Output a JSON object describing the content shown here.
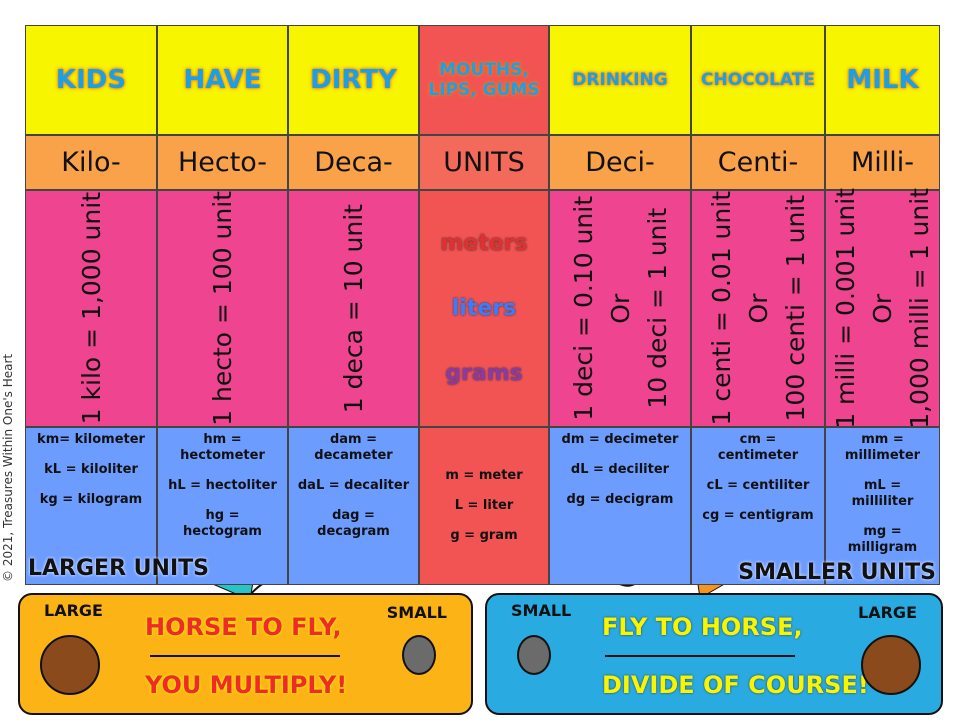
{
  "copyright": "© 2021, Treasures Within One's Heart",
  "table": {
    "mnemonic": [
      "KIDS",
      "HAVE",
      "DIRTY",
      "MOUTHS, LIPS, GUMS",
      "DRINKING",
      "CHOCOLATE",
      "MILK"
    ],
    "prefixes": [
      "Kilo-",
      "Hecto-",
      "Deca-",
      "UNITS",
      "Deci-",
      "Centi-",
      "Milli-"
    ],
    "definitions": [
      [
        "1 kilo = 1,000 unit"
      ],
      [
        "1 hecto = 100 unit"
      ],
      [
        "1 deca = 10 unit"
      ],
      [
        "meters",
        "liters",
        "grams"
      ],
      [
        "1 deci = 0.10 unit",
        "Or",
        "10 deci = 1 unit"
      ],
      [
        "1 centi = 0.01 unit",
        "Or",
        "100 centi = 1 unit"
      ],
      [
        "1 milli = 0.001 unit",
        "Or",
        "1,000 milli = 1 unit"
      ]
    ],
    "abbreviations": [
      [
        "km= kilometer",
        "kL = kiloliter",
        "kg = kilogram"
      ],
      [
        "hm = hectometer",
        "hL = hectoliter",
        "hg = hectogram"
      ],
      [
        "dam = decameter",
        "daL = decaliter",
        "dag = decagram"
      ],
      [
        "m = meter",
        "L = liter",
        "g = gram"
      ],
      [
        "dm = decimeter",
        "dL = deciliter",
        "dg = decigram"
      ],
      [
        "cm = centimeter",
        "cL = centiliter",
        "cg = centigram"
      ],
      [
        "mm = millimeter",
        "mL = milliliter",
        "mg = milligram"
      ]
    ]
  },
  "labels": {
    "larger": "LARGER UNITS",
    "smaller": "SMALLER UNITS"
  },
  "panels": [
    {
      "left": "LARGE",
      "right": "SMALL",
      "lines": [
        "HORSE TO FLY,",
        "YOU MULTIPLY!"
      ]
    },
    {
      "left": "SMALL",
      "right": "LARGE",
      "lines": [
        "FLY TO HORSE,",
        "DIVIDE OF COURSE!"
      ]
    }
  ]
}
